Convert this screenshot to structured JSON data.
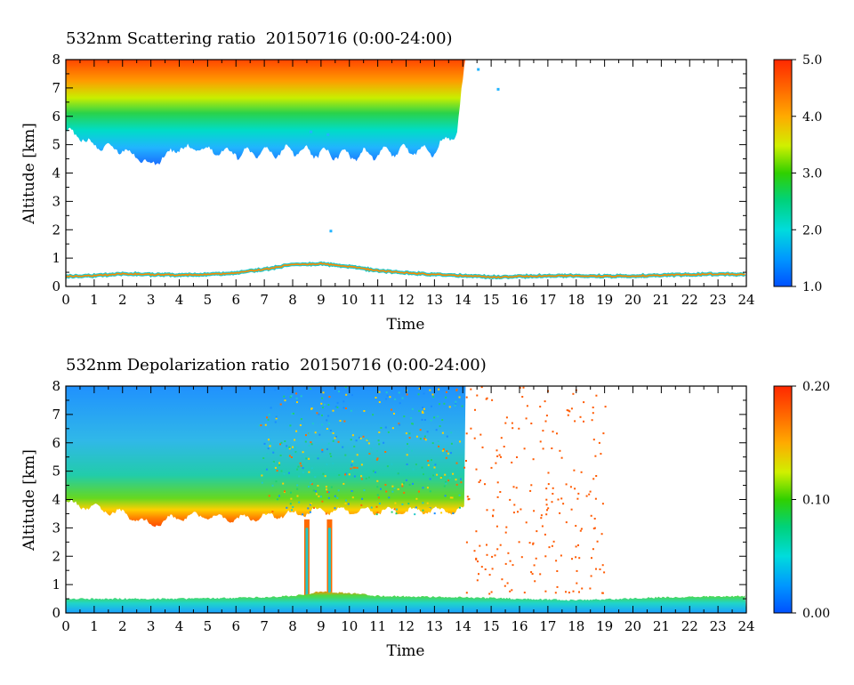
{
  "chart_data": [
    {
      "type": "heatmap",
      "title": "532nm Scattering ratio  20150716 (0:00-24:00)",
      "xlabel": "Time",
      "ylabel": "Altitude [km]",
      "xlim": [
        0,
        24
      ],
      "ylim": [
        0,
        8
      ],
      "x_ticks": [
        "0",
        "1",
        "2",
        "3",
        "4",
        "5",
        "6",
        "7",
        "8",
        "9",
        "10",
        "11",
        "12",
        "13",
        "14",
        "15",
        "16",
        "17",
        "18",
        "19",
        "20",
        "21",
        "22",
        "23",
        "24"
      ],
      "y_ticks": [
        "0",
        "1",
        "2",
        "3",
        "4",
        "5",
        "6",
        "7",
        "8"
      ],
      "colorbar": {
        "range": [
          1.0,
          5.0
        ],
        "tick_labels": [
          "1.0",
          "2.0",
          "3.0",
          "4.0",
          "5.0"
        ]
      },
      "features": {
        "boundary_layer_top_km": [
          [
            0,
            0.35
          ],
          [
            1,
            0.38
          ],
          [
            2,
            0.45
          ],
          [
            3,
            0.42
          ],
          [
            4,
            0.4
          ],
          [
            5,
            0.42
          ],
          [
            6,
            0.48
          ],
          [
            7,
            0.6
          ],
          [
            8,
            0.78
          ],
          [
            9,
            0.8
          ],
          [
            10,
            0.7
          ],
          [
            11,
            0.55
          ],
          [
            12,
            0.48
          ],
          [
            13,
            0.42
          ],
          [
            14,
            0.38
          ],
          [
            15,
            0.33
          ],
          [
            16,
            0.35
          ],
          [
            17,
            0.38
          ],
          [
            18,
            0.38
          ],
          [
            19,
            0.36
          ],
          [
            20,
            0.37
          ],
          [
            21,
            0.4
          ],
          [
            22,
            0.42
          ],
          [
            23,
            0.44
          ],
          [
            24,
            0.42
          ]
        ],
        "aerosol_layer_base_km": [
          [
            0,
            5.5
          ],
          [
            1,
            5.0
          ],
          [
            2,
            4.8
          ],
          [
            3,
            4.3
          ],
          [
            4,
            4.9
          ],
          [
            5,
            4.8
          ],
          [
            6,
            4.7
          ],
          [
            7,
            4.7
          ],
          [
            8,
            4.8
          ],
          [
            9,
            4.7
          ],
          [
            10,
            4.6
          ],
          [
            11,
            4.7
          ],
          [
            12,
            4.8
          ],
          [
            13,
            4.8
          ],
          [
            13.8,
            5.5
          ],
          [
            14.1,
            8.0
          ]
        ],
        "aerosol_layer_end_hour": 14.1
      }
    },
    {
      "type": "heatmap",
      "title": "532nm Depolarization ratio  20150716 (0:00-24:00)",
      "xlabel": "Time",
      "ylabel": "Altitude [km]",
      "xlim": [
        0,
        24
      ],
      "ylim": [
        0,
        8
      ],
      "x_ticks": [
        "0",
        "1",
        "2",
        "3",
        "4",
        "5",
        "6",
        "7",
        "8",
        "9",
        "10",
        "11",
        "12",
        "13",
        "14",
        "15",
        "16",
        "17",
        "18",
        "19",
        "20",
        "21",
        "22",
        "23",
        "24"
      ],
      "y_ticks": [
        "0",
        "1",
        "2",
        "3",
        "4",
        "5",
        "6",
        "7",
        "8"
      ],
      "colorbar": {
        "range": [
          0.0,
          0.2
        ],
        "tick_labels": [
          "0.00",
          "0.10",
          "0.20"
        ]
      },
      "features": {
        "layer_base_km": [
          [
            0,
            3.9
          ],
          [
            1,
            3.7
          ],
          [
            2,
            3.5
          ],
          [
            3,
            3.1
          ],
          [
            4,
            3.4
          ],
          [
            5,
            3.4
          ],
          [
            6,
            3.3
          ],
          [
            7,
            3.4
          ],
          [
            8,
            3.5
          ],
          [
            9,
            3.6
          ],
          [
            10,
            3.6
          ],
          [
            11,
            3.6
          ],
          [
            12,
            3.6
          ],
          [
            13,
            3.6
          ],
          [
            14,
            3.6
          ]
        ],
        "boundary_layer_top_km": [
          [
            0,
            0.5
          ],
          [
            4,
            0.5
          ],
          [
            7,
            0.55
          ],
          [
            8,
            0.6
          ],
          [
            9,
            0.75
          ],
          [
            10,
            0.7
          ],
          [
            11,
            0.6
          ],
          [
            14,
            0.55
          ],
          [
            18,
            0.45
          ],
          [
            21,
            0.55
          ],
          [
            24,
            0.6
          ]
        ],
        "plume_hours": [
          8.5,
          9.3
        ],
        "layer_end_hour": 14.1
      }
    }
  ]
}
